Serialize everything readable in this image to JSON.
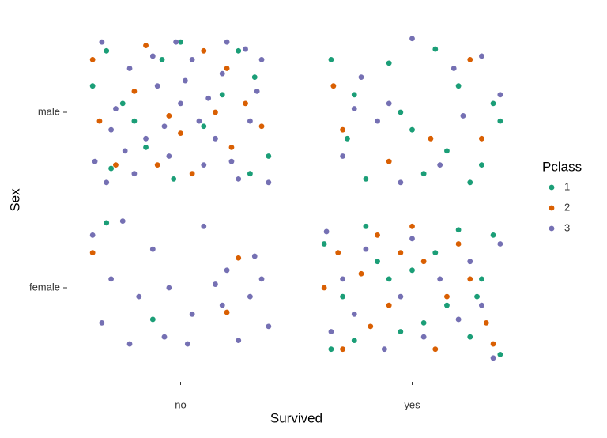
{
  "chart_data": {
    "type": "scatter",
    "x_label": "Survived",
    "y_label": "Sex",
    "xlim": [
      0.5,
      2.5
    ],
    "ylim": [
      0.5,
      2.5
    ],
    "xticks": [
      {
        "value": 1,
        "label": "no"
      },
      {
        "value": 2,
        "label": "yes"
      }
    ],
    "yticks": [
      {
        "value": 1,
        "label": "female"
      },
      {
        "value": 2,
        "label": "male"
      }
    ],
    "grid": false,
    "legend_title": "Pclass",
    "legend": "right",
    "series": [
      {
        "name": "1",
        "color": "#1b9e77",
        "x": [
          0.68,
          0.75,
          0.92,
          1.25,
          0.85,
          1.1,
          1.3,
          0.62,
          1.38,
          1.0,
          0.8,
          1.18,
          0.7,
          1.32,
          0.97,
          1.65,
          1.9,
          2.35,
          1.72,
          2.05,
          2.2,
          1.95,
          2.3,
          1.8,
          2.15,
          2.38,
          1.75,
          2.1,
          2.25,
          2.0,
          0.68,
          0.88,
          1.62,
          1.8,
          2.1,
          2.3,
          1.7,
          1.95,
          2.25,
          2.0,
          2.38,
          1.85,
          2.15,
          1.75,
          2.35,
          1.9,
          2.05,
          2.2,
          1.65,
          2.28
        ],
        "values": [
          2.35,
          2.05,
          2.3,
          2.35,
          1.8,
          1.92,
          1.65,
          2.15,
          1.75,
          2.4,
          1.95,
          2.1,
          1.68,
          2.2,
          1.62,
          2.3,
          2.28,
          2.05,
          1.85,
          1.65,
          2.15,
          2.0,
          1.7,
          1.62,
          1.78,
          1.95,
          2.1,
          2.36,
          1.6,
          1.9,
          1.37,
          0.82,
          1.25,
          1.35,
          1.2,
          1.05,
          0.95,
          0.75,
          0.72,
          1.1,
          0.62,
          1.15,
          0.9,
          0.7,
          1.3,
          1.05,
          0.8,
          1.33,
          0.65,
          0.95
        ]
      },
      {
        "name": "2",
        "color": "#d95f02",
        "x": [
          0.62,
          0.8,
          1.0,
          1.2,
          0.72,
          0.9,
          1.28,
          1.35,
          1.1,
          0.65,
          1.05,
          1.22,
          0.85,
          1.15,
          0.95,
          1.66,
          2.25,
          1.7,
          2.08,
          2.3,
          1.9,
          0.62,
          1.25,
          1.2,
          1.62,
          1.85,
          2.05,
          2.2,
          1.7,
          1.9,
          2.32,
          2.1,
          1.78,
          2.0,
          2.25,
          1.95,
          2.15,
          1.68,
          2.35,
          1.82
        ],
        "values": [
          2.3,
          2.12,
          1.88,
          2.25,
          1.7,
          1.7,
          2.05,
          1.92,
          2.35,
          1.95,
          1.65,
          1.8,
          2.38,
          2.0,
          1.98,
          2.15,
          2.3,
          1.9,
          1.85,
          1.85,
          1.72,
          1.2,
          1.17,
          0.86,
          1.0,
          1.3,
          1.15,
          1.25,
          0.65,
          0.9,
          0.8,
          0.65,
          1.08,
          1.35,
          1.05,
          1.2,
          0.95,
          1.2,
          0.68,
          0.78
        ]
      },
      {
        "name": "3",
        "color": "#7570b3",
        "x": [
          0.66,
          0.78,
          0.9,
          1.05,
          1.2,
          1.35,
          0.7,
          0.85,
          1.0,
          1.15,
          1.3,
          0.63,
          0.8,
          0.95,
          1.1,
          1.25,
          1.38,
          0.72,
          0.88,
          1.02,
          1.18,
          1.33,
          0.68,
          0.93,
          1.08,
          1.22,
          0.76,
          1.28,
          0.98,
          1.12,
          2.0,
          1.78,
          2.3,
          1.9,
          2.22,
          1.7,
          2.12,
          1.85,
          2.38,
          1.95,
          2.18,
          1.75,
          0.62,
          0.75,
          0.88,
          1.1,
          1.2,
          1.32,
          0.7,
          0.82,
          0.95,
          1.05,
          1.18,
          1.3,
          1.38,
          0.66,
          0.78,
          0.93,
          1.03,
          1.25,
          1.35,
          1.15,
          1.63,
          1.8,
          2.0,
          2.25,
          2.38,
          1.7,
          1.95,
          2.12,
          2.3,
          1.75,
          2.05,
          2.2,
          1.88,
          2.35,
          1.65
        ],
        "values": [
          2.4,
          2.25,
          2.15,
          2.3,
          2.4,
          2.3,
          1.9,
          1.85,
          2.05,
          1.85,
          1.95,
          1.72,
          1.65,
          1.75,
          1.7,
          1.62,
          1.6,
          2.02,
          2.32,
          2.18,
          2.22,
          2.12,
          1.6,
          1.92,
          1.95,
          1.72,
          1.78,
          2.36,
          2.4,
          2.08,
          2.42,
          2.2,
          2.32,
          2.05,
          1.98,
          1.75,
          1.7,
          1.95,
          2.1,
          1.6,
          2.25,
          2.02,
          1.3,
          1.38,
          1.22,
          1.35,
          1.1,
          1.18,
          1.05,
          0.95,
          1.0,
          0.85,
          0.9,
          0.95,
          0.78,
          0.8,
          0.68,
          0.72,
          0.68,
          0.7,
          1.05,
          1.02,
          1.32,
          1.22,
          1.28,
          1.15,
          1.25,
          1.05,
          0.95,
          1.05,
          0.9,
          0.85,
          0.72,
          0.82,
          0.65,
          0.6,
          0.75
        ]
      }
    ]
  }
}
